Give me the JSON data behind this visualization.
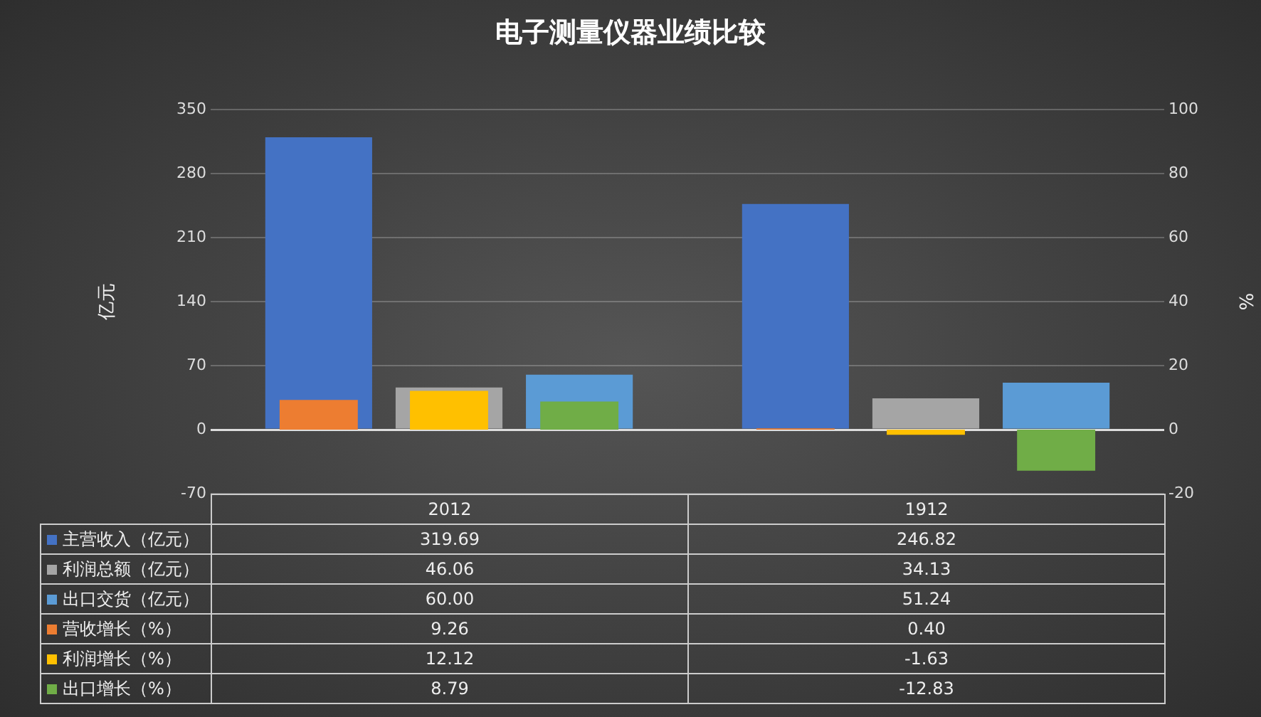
{
  "chart_data": {
    "type": "bar",
    "title": "电子测量仪器业绩比较",
    "ylabel": "亿元",
    "y2label": "%",
    "categories": [
      "2012",
      "1912"
    ],
    "series": [
      {
        "name": "主营收入（亿元）",
        "color": "#4472c4",
        "values": [
          319.69,
          246.82
        ],
        "value_labels": [
          "319.69",
          "246.82"
        ]
      },
      {
        "name": "利润总额（亿元）",
        "color": "#a5a5a5",
        "values": [
          46.06,
          34.13
        ],
        "value_labels": [
          "46.06",
          "34.13"
        ]
      },
      {
        "name": "出口交货（亿元）",
        "color": "#5b9bd5",
        "values": [
          60.0,
          51.24
        ],
        "value_labels": [
          "60.00",
          "51.24"
        ]
      },
      {
        "name": "营收增长（%）",
        "color": "#ed7d31",
        "values": [
          9.26,
          0.4
        ],
        "axis": "y2",
        "value_labels": [
          "9.26",
          "0.40"
        ]
      },
      {
        "name": "利润增长（%）",
        "color": "#ffc000",
        "values": [
          12.12,
          -1.63
        ],
        "axis": "y2",
        "value_labels": [
          "12.12",
          "-1.63"
        ]
      },
      {
        "name": "出口增长（%）",
        "color": "#70ad47",
        "values": [
          8.79,
          -12.83
        ],
        "axis": "y2",
        "value_labels": [
          "8.79",
          "-12.83"
        ]
      }
    ],
    "ylim": [
      -70,
      350
    ],
    "yticks": [
      -70,
      0,
      70,
      140,
      210,
      280,
      350
    ],
    "y2lim": [
      -20,
      100
    ],
    "y2ticks": [
      -20,
      0,
      20,
      40,
      60,
      80,
      100
    ],
    "grid": "y",
    "legend": "bottom"
  }
}
